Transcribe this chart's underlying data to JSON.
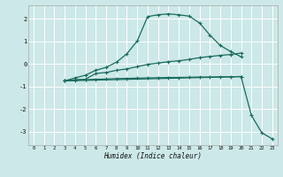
{
  "xlabel": "Humidex (Indice chaleur)",
  "bg_color": "#cce8e8",
  "line_color": "#1a6b5e",
  "grid_color": "#ffffff",
  "xlim": [
    -0.5,
    23.5
  ],
  "ylim": [
    -3.6,
    2.6
  ],
  "xticks": [
    0,
    1,
    2,
    3,
    4,
    5,
    6,
    7,
    8,
    9,
    10,
    11,
    12,
    13,
    14,
    15,
    16,
    17,
    18,
    19,
    20,
    21,
    22,
    23
  ],
  "yticks": [
    -3,
    -2,
    -1,
    0,
    1,
    2
  ],
  "line1_x": [
    3,
    4,
    5,
    6,
    7,
    8,
    9,
    10,
    11,
    12,
    13,
    14,
    15,
    16,
    17,
    18,
    19,
    20
  ],
  "line1_y": [
    -0.75,
    -0.62,
    -0.5,
    -0.28,
    -0.15,
    0.08,
    0.45,
    1.02,
    2.1,
    2.18,
    2.22,
    2.18,
    2.12,
    1.82,
    1.28,
    0.82,
    0.55,
    0.32
  ],
  "line2_x": [
    3,
    4,
    5,
    6,
    7,
    8,
    9,
    10,
    11,
    12,
    13,
    14,
    15,
    16,
    17,
    18,
    19,
    20
  ],
  "line2_y": [
    -0.75,
    -0.7,
    -0.68,
    -0.42,
    -0.38,
    -0.28,
    -0.22,
    -0.12,
    -0.02,
    0.04,
    0.1,
    0.14,
    0.2,
    0.28,
    0.33,
    0.38,
    0.42,
    0.48
  ],
  "line3_x": [
    3,
    4,
    5,
    6,
    7,
    8,
    9,
    10,
    11,
    12,
    13,
    14,
    15,
    16,
    17,
    18,
    19,
    20
  ],
  "line3_y": [
    -0.75,
    -0.72,
    -0.7,
    -0.68,
    -0.67,
    -0.65,
    -0.64,
    -0.63,
    -0.62,
    -0.61,
    -0.6,
    -0.6,
    -0.59,
    -0.58,
    -0.58,
    -0.57,
    -0.57,
    -0.56
  ],
  "line4_x": [
    3,
    20,
    21,
    22,
    23
  ],
  "line4_y": [
    -0.75,
    -0.56,
    -2.28,
    -3.05,
    -3.32
  ]
}
